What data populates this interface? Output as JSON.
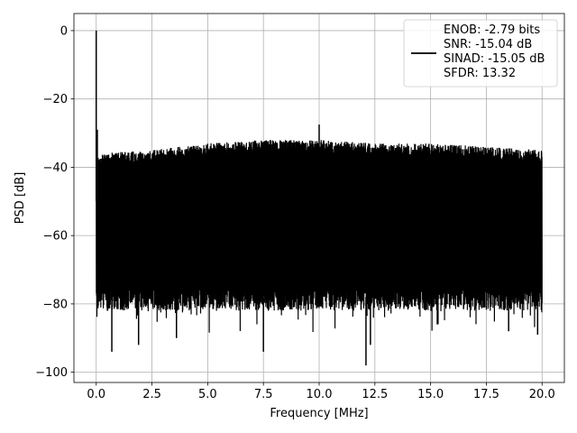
{
  "chart_data": {
    "type": "line",
    "title": "",
    "xlabel": "Frequency [MHz]",
    "ylabel": "PSD [dB]",
    "xlim": [
      -1.0,
      21.0
    ],
    "ylim": [
      -103,
      5
    ],
    "xticks": [
      0.0,
      2.5,
      5.0,
      7.5,
      10.0,
      12.5,
      15.0,
      17.5,
      20.0
    ],
    "xtick_labels": [
      "0.0",
      "2.5",
      "5.0",
      "7.5",
      "10.0",
      "12.5",
      "15.0",
      "17.5",
      "20.0"
    ],
    "yticks": [
      0,
      -20,
      -40,
      -60,
      -80,
      -100
    ],
    "ytick_labels": [
      "0",
      "−20",
      "−40",
      "−60",
      "−80",
      "−100"
    ],
    "grid": true,
    "legend_position": "top-right",
    "legend_lines": [
      "ENOB: -2.79 bits",
      "SNR: -15.04 dB",
      "SINAD: -15.05 dB",
      "SFDR: 13.32"
    ],
    "series": [
      {
        "color": "#000000",
        "noise_floor": {
          "x_range": [
            0.0,
            20.0
          ],
          "upper_envelope": [
            [
              0.0,
              -36
            ],
            [
              2.5,
              -35
            ],
            [
              5.0,
              -33
            ],
            [
              7.5,
              -32
            ],
            [
              10.0,
              -32
            ],
            [
              12.5,
              -33
            ],
            [
              15.0,
              -33
            ],
            [
              17.5,
              -34
            ],
            [
              20.0,
              -35
            ]
          ],
          "typical_lower": -78,
          "min_dips": [
            [
              0.7,
              -94
            ],
            [
              1.9,
              -92
            ],
            [
              3.6,
              -90
            ],
            [
              7.5,
              -94
            ],
            [
              12.1,
              -98
            ],
            [
              12.3,
              -92
            ],
            [
              15.3,
              -86
            ],
            [
              18.5,
              -88
            ],
            [
              19.8,
              -89
            ]
          ]
        },
        "peaks": [
          [
            0.0,
            0.0
          ],
          [
            0.05,
            -29
          ],
          [
            10.0,
            -27.5
          ]
        ]
      }
    ]
  }
}
